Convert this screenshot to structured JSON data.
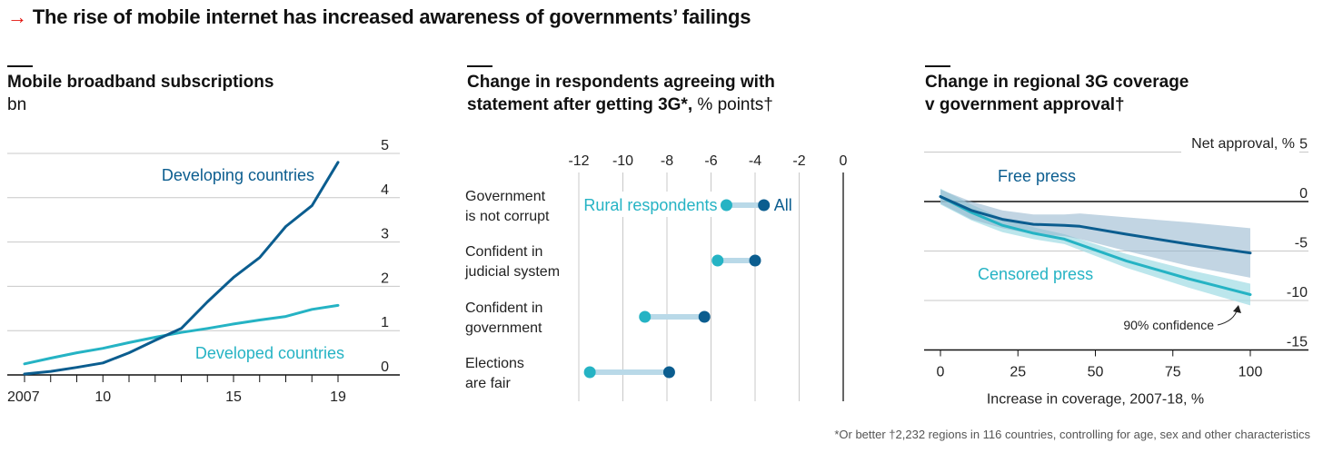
{
  "headline": {
    "arrow": "→",
    "text": "The rise of mobile internet has increased awareness of governments’ failings"
  },
  "footnote": "*Or better †2,232 regions in 116 countries, controlling for age, sex and other characteristics",
  "colors": {
    "dark": "#0b5d8f",
    "light": "#25b3c4",
    "accent": "#e3120b",
    "grid": "#c8c8c8"
  },
  "chart_data": [
    {
      "type": "line",
      "title": "Mobile broadband subscriptions",
      "ylabel": "bn",
      "xlim": [
        2007,
        2019
      ],
      "ylim": [
        0,
        5
      ],
      "xticks": [
        2007,
        2010,
        2015,
        2019
      ],
      "xtick_labels": [
        "2007",
        "10",
        "15",
        "19"
      ],
      "yticks": [
        0,
        1,
        2,
        3,
        4,
        5
      ],
      "ytick_labels": [
        "0",
        "1",
        "2",
        "3",
        "4",
        "5"
      ],
      "grid": true,
      "series": [
        {
          "name": "Developing countries",
          "color": "#0b5d8f",
          "x": [
            2007,
            2008,
            2009,
            2010,
            2011,
            2012,
            2013,
            2014,
            2015,
            2016,
            2017,
            2018,
            2019
          ],
          "values": [
            0.02,
            0.08,
            0.17,
            0.27,
            0.5,
            0.78,
            1.05,
            1.65,
            2.2,
            2.65,
            3.35,
            3.82,
            4.8
          ]
        },
        {
          "name": "Developed countries",
          "color": "#25b3c4",
          "x": [
            2007,
            2008,
            2009,
            2010,
            2011,
            2012,
            2013,
            2014,
            2015,
            2016,
            2017,
            2018,
            2019
          ],
          "values": [
            0.25,
            0.38,
            0.5,
            0.6,
            0.73,
            0.85,
            0.96,
            1.05,
            1.15,
            1.24,
            1.32,
            1.48,
            1.57
          ]
        }
      ]
    },
    {
      "type": "scatter",
      "subtype": "dumbbell",
      "title": "Change in respondents agreeing with statement after getting 3G*, % points†",
      "title_lines": [
        "Change in respondents agreeing with",
        "statement after getting 3G*,"
      ],
      "title_unit": "% points†",
      "xlim": [
        -12,
        0
      ],
      "xticks": [
        -12,
        -10,
        -8,
        -6,
        -4,
        -2,
        0
      ],
      "xtick_labels": [
        "-12",
        "-10",
        "-8",
        "-6",
        "-4",
        "-2",
        "0"
      ],
      "grid": true,
      "legend": {
        "rural": "Rural respondents",
        "all": "All"
      },
      "categories": [
        [
          "Government",
          "is not corrupt"
        ],
        [
          "Confident in",
          "judicial system"
        ],
        [
          "Confident in",
          "government"
        ],
        [
          "Elections",
          "are fair"
        ]
      ],
      "series": [
        {
          "name": "Rural respondents",
          "color": "#25b3c4",
          "values": [
            -5.3,
            -5.7,
            -9.0,
            -11.5
          ]
        },
        {
          "name": "All",
          "color": "#0b5d8f",
          "values": [
            -3.6,
            -4.0,
            -6.3,
            -7.9
          ]
        }
      ]
    },
    {
      "type": "line",
      "title": "Change in regional 3G coverage v government approval†",
      "title_lines": [
        "Change in regional 3G coverage",
        "v government approval†"
      ],
      "ylabel": "Net approval, %",
      "xlabel": "Increase in coverage, 2007-18, %",
      "xlim": [
        0,
        100
      ],
      "ylim": [
        -15,
        5
      ],
      "xticks": [
        0,
        25,
        50,
        75,
        100
      ],
      "xtick_labels": [
        "0",
        "25",
        "50",
        "75",
        "100"
      ],
      "yticks": [
        5,
        0,
        -5,
        -10,
        -15
      ],
      "ytick_labels": [
        "5",
        "0",
        "-5",
        "-10",
        "-15"
      ],
      "grid": true,
      "annotation": "90% confidence",
      "series": [
        {
          "name": "Free press",
          "color": "#0b5d8f",
          "x": [
            0,
            10,
            20,
            30,
            40,
            45,
            60,
            80,
            100
          ],
          "values": [
            0.5,
            -0.9,
            -1.8,
            -2.3,
            -2.4,
            -2.5,
            -3.3,
            -4.3,
            -5.2
          ],
          "upper": [
            1.2,
            0.0,
            -0.9,
            -1.3,
            -1.3,
            -1.2,
            -1.6,
            -2.1,
            -2.7
          ],
          "lower": [
            -0.2,
            -1.8,
            -2.7,
            -3.3,
            -3.5,
            -3.8,
            -5.0,
            -6.5,
            -7.7
          ]
        },
        {
          "name": "Censored press",
          "color": "#25b3c4",
          "x": [
            0,
            10,
            20,
            30,
            40,
            50,
            60,
            70,
            80,
            90,
            100
          ],
          "values": [
            0.5,
            -1.1,
            -2.4,
            -3.2,
            -3.8,
            -4.9,
            -6.0,
            -6.9,
            -7.8,
            -8.6,
            -9.4
          ],
          "upper": [
            1.3,
            -0.3,
            -1.7,
            -2.6,
            -3.3,
            -4.3,
            -5.3,
            -6.1,
            -6.9,
            -7.6,
            -8.3
          ],
          "lower": [
            -0.3,
            -1.9,
            -3.1,
            -3.8,
            -4.3,
            -5.5,
            -6.7,
            -7.7,
            -8.7,
            -9.6,
            -10.5
          ]
        }
      ]
    }
  ]
}
